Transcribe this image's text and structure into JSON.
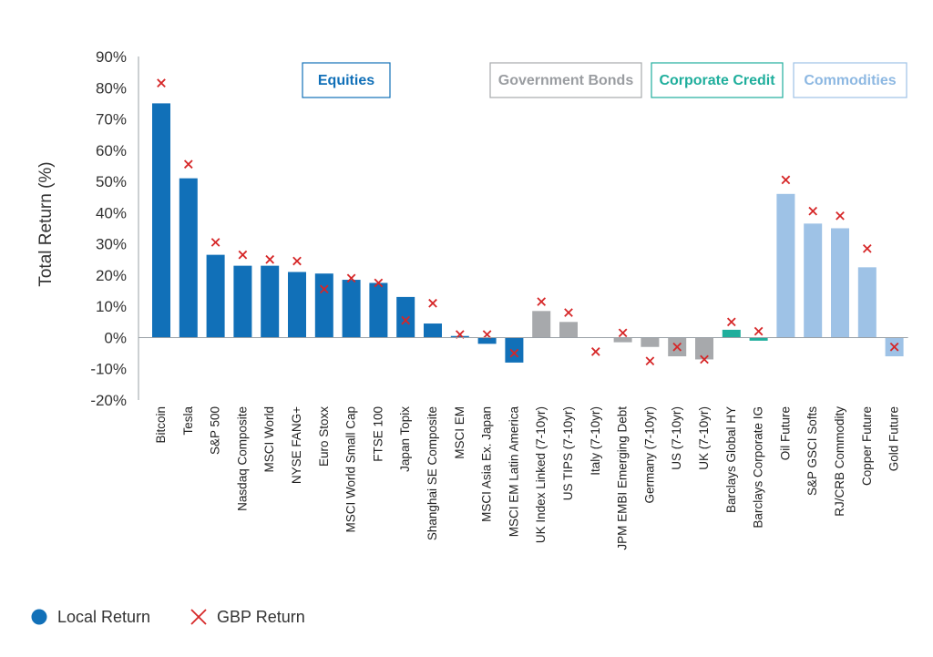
{
  "chart_data": {
    "type": "bar",
    "ylabel": "Total Return (%)",
    "ylim": [
      -20,
      90
    ],
    "yticks": [
      -20,
      -10,
      0,
      10,
      20,
      30,
      40,
      50,
      60,
      70,
      80,
      90
    ],
    "ytick_labels": [
      "-20%",
      "-10%",
      "0%",
      "10%",
      "20%",
      "30%",
      "40%",
      "50%",
      "60%",
      "70%",
      "80%",
      "90%"
    ],
    "grid": false,
    "legend_position": "bottom-left",
    "categories": [
      "Bitcoin",
      "Tesla",
      "S&P 500",
      "Nasdaq Composite",
      "MSCI World",
      "NYSE FANG+",
      "Euro Stoxx",
      "MSCI World Small Cap",
      "FTSE 100",
      "Japan Topix",
      "Shanghai SE Composite",
      "MSCI EM",
      "MSCI Asia Ex. Japan",
      "MSCI EM Latin America",
      "UK Index Linked (7-10yr)",
      "US TIPS (7-10yr)",
      "Italy (7-10yr)",
      "JPM EMBI Emerging Debt",
      "Germany (7-10yr)",
      "US (7-10yr)",
      "UK (7-10yr)",
      "Barclays Global HY",
      "Barclays Corporate IG",
      "Oil Future",
      "S&P GSCI Softs",
      "RJ/CRB Commodity",
      "Copper Future",
      "Gold Future"
    ],
    "category_groups": [
      "Equities",
      "Equities",
      "Equities",
      "Equities",
      "Equities",
      "Equities",
      "Equities",
      "Equities",
      "Equities",
      "Equities",
      "Equities",
      "Equities",
      "Equities",
      "Equities",
      "Government Bonds",
      "Government Bonds",
      "Government Bonds",
      "Government Bonds",
      "Government Bonds",
      "Government Bonds",
      "Government Bonds",
      "Corporate Credit",
      "Corporate Credit",
      "Commodities",
      "Commodities",
      "Commodities",
      "Commodities",
      "Commodities"
    ],
    "groups": [
      {
        "name": "Equities",
        "color": "#1170b8"
      },
      {
        "name": "Government Bonds",
        "color": "#a7a9ac"
      },
      {
        "name": "Corporate Credit",
        "color": "#1fae9c"
      },
      {
        "name": "Commodities",
        "color": "#9ec2e6"
      }
    ],
    "series": [
      {
        "name": "Local Return",
        "kind": "bar",
        "color": "#1170b8",
        "values": [
          75,
          51,
          26.5,
          23,
          23,
          21,
          20.5,
          18.5,
          17.5,
          13,
          4.5,
          0.5,
          -2,
          -8,
          8.5,
          5,
          0,
          -1.5,
          -3,
          -6,
          -7,
          2.5,
          -1,
          46,
          36.5,
          35,
          22.5,
          -6
        ]
      },
      {
        "name": "GBP Return",
        "kind": "marker",
        "color": "#d62728",
        "values": [
          81.5,
          55.5,
          30.5,
          26.5,
          25,
          24.5,
          15.5,
          19,
          17.5,
          5.5,
          11,
          1,
          1,
          -5,
          11.5,
          8,
          -4.5,
          1.5,
          -7.5,
          -3,
          -7,
          5,
          2,
          50.5,
          40.5,
          39,
          28.5,
          -3
        ]
      }
    ]
  },
  "group_labels": {
    "equities": "Equities",
    "government_bonds": "Government Bonds",
    "corporate_credit": "Corporate Credit",
    "commodities": "Commodities"
  },
  "legend": {
    "local": "Local Return",
    "gbp": "GBP Return"
  }
}
